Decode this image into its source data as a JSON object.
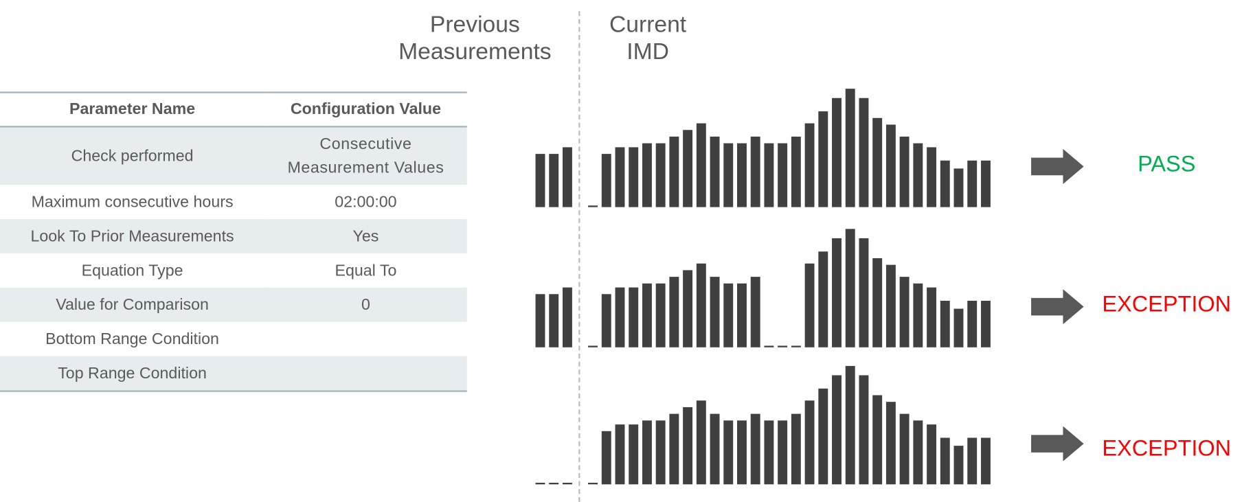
{
  "headers": {
    "previous": "Previous Measurements",
    "current": "Current IMD"
  },
  "table": {
    "columns": [
      "Parameter Name",
      "Configuration Value"
    ],
    "rows": [
      {
        "name": "Check performed",
        "value": "Consecutive Measurement Values"
      },
      {
        "name": "Maximum consecutive hours",
        "value": "02:00:00"
      },
      {
        "name": "Look To Prior Measurements",
        "value": "Yes"
      },
      {
        "name": "Equation Type",
        "value": "Equal To"
      },
      {
        "name": "Value for Comparison",
        "value": "0"
      },
      {
        "name": "Bottom Range Condition",
        "value": ""
      },
      {
        "name": "Top Range Condition",
        "value": ""
      }
    ]
  },
  "colors": {
    "bar": "#404040",
    "arrow": "#595959",
    "pass": "#00b050",
    "exception": "#ff0000"
  },
  "scenarios": [
    {
      "previous": [
        4,
        4,
        4.5
      ],
      "current": [
        0,
        4,
        4.5,
        4.5,
        4.8,
        4.8,
        5.3,
        5.8,
        6.3,
        5.3,
        4.8,
        4.8,
        5.3,
        4.8,
        4.8,
        5.3,
        6.3,
        7.2,
        8.2,
        8.9,
        8.2,
        6.7,
        6.2,
        5.3,
        4.8,
        4.5,
        3.5,
        2.9,
        3.5,
        3.5
      ],
      "result": "PASS",
      "status": "pass"
    },
    {
      "previous": [
        4,
        4,
        4.5
      ],
      "current": [
        0,
        4,
        4.5,
        4.5,
        4.8,
        4.8,
        5.3,
        5.8,
        6.3,
        5.3,
        4.8,
        4.8,
        5.3,
        0,
        0,
        0,
        6.3,
        7.2,
        8.2,
        8.9,
        8.2,
        6.7,
        6.2,
        5.3,
        4.8,
        4.5,
        3.5,
        2.9,
        3.5,
        3.5
      ],
      "result": "EXCEPTION",
      "status": "exception"
    },
    {
      "previous": [
        0,
        0,
        0
      ],
      "current": [
        0,
        4,
        4.5,
        4.5,
        4.8,
        4.8,
        5.3,
        5.8,
        6.3,
        5.3,
        4.8,
        4.8,
        5.3,
        4.8,
        4.8,
        5.3,
        6.3,
        7.2,
        8.2,
        8.9,
        8.2,
        6.7,
        6.2,
        5.3,
        4.8,
        4.5,
        3.5,
        2.9,
        3.5,
        3.5
      ],
      "result": "EXCEPTION",
      "status": "exception"
    }
  ]
}
